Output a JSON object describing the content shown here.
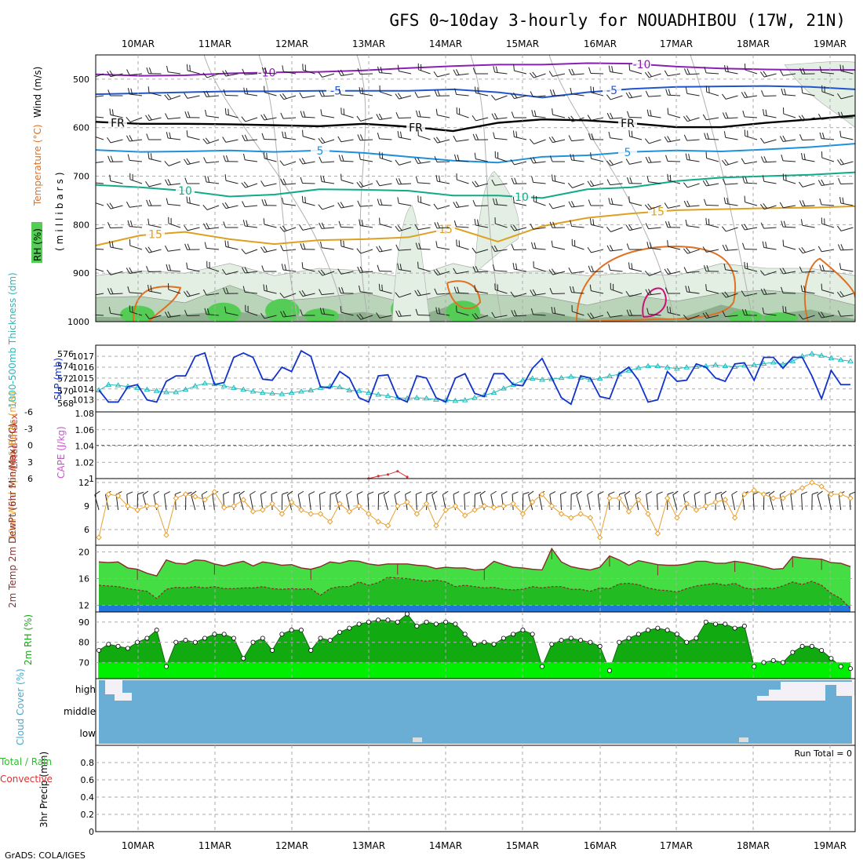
{
  "title": "GFS 0~10day 3-hourly for NOUADHIBOU (17W, 21N)",
  "credit": "GrADS: COLA/IGES",
  "run_total": "Run Total = 0",
  "dates": [
    "10MAR",
    "11MAR",
    "12MAR",
    "13MAR",
    "14MAR",
    "15MAR",
    "16MAR",
    "17MAR",
    "18MAR",
    "19MAR"
  ],
  "colors": {
    "rh_dark": "#8fb08f",
    "rh_mid": "#b9d4b9",
    "rh_light": "#e3efe3",
    "rh_green": "#55cc55",
    "temp_m10": "#8a1fb5",
    "temp_m5": "#2255cc",
    "temp_fr": "#000000",
    "temp_5": "#1e90dd",
    "temp_10": "#11aa88",
    "temp_15": "#dda020",
    "temp_20": "#e07020",
    "temp_25": "#cc1177",
    "slp": "#1133cc",
    "thickness": "#22bbbb",
    "wind10": "#e8a030",
    "temp_fill": "#44dd44",
    "dew_fill": "#22bb22",
    "low_fill": "#2277dd",
    "rh_fill_dark": "#11aa11",
    "rh_fill_light": "#00ee00",
    "cloud": "#6aaed6",
    "cloud_clear": "#f3f0f8",
    "grid": "#aaaaaa"
  },
  "chart_data": [
    {
      "type": "area",
      "panel": "pressure-time cross section",
      "ylabel": "(millibars)",
      "legend": [
        "RH (%)",
        "Temperature (°C)",
        "Wind (m/s)"
      ],
      "yticks": [
        500,
        600,
        700,
        800,
        900,
        1000
      ],
      "ylim": [
        1000,
        450
      ],
      "temperature_contours": [
        {
          "label": "-10",
          "level_mb": [
            490,
            493,
            492,
            488,
            486,
            485,
            482,
            477,
            473,
            470,
            470,
            467,
            468,
            474,
            478,
            480,
            481,
            481
          ]
        },
        {
          "label": "-5",
          "level_mb": [
            531,
            529,
            527,
            525,
            525,
            524,
            524,
            524,
            521,
            527,
            538,
            527,
            520,
            516,
            515,
            514,
            516,
            521
          ]
        },
        {
          "label": "FR",
          "level_mb": [
            588,
            592,
            592,
            593,
            595,
            597,
            592,
            598,
            607,
            590,
            583,
            585,
            591,
            599,
            599,
            590,
            583,
            575
          ]
        },
        {
          "label": "5",
          "level_mb": [
            646,
            650,
            649,
            647,
            650,
            647,
            652,
            660,
            668,
            672,
            660,
            657,
            650,
            647,
            649,
            645,
            640,
            633
          ]
        },
        {
          "label": "10",
          "level_mb": [
            718,
            723,
            730,
            742,
            738,
            727,
            728,
            730,
            740,
            740,
            745,
            727,
            723,
            710,
            703,
            700,
            697,
            692
          ]
        },
        {
          "label": "15",
          "level_mb": [
            843,
            822,
            815,
            830,
            840,
            832,
            830,
            826,
            806,
            835,
            803,
            786,
            777,
            770,
            768,
            766,
            765,
            762
          ]
        }
      ],
      "rh_low_level_top_mb": [
        905,
        895,
        900,
        880,
        905,
        890,
        895,
        910,
        880,
        900,
        895,
        905,
        900,
        905,
        880,
        890,
        890,
        905
      ]
    },
    {
      "type": "line",
      "panel": "sea level pressure and thickness",
      "ylabel_left": "1000-500mb Thickness (dm)",
      "ylabel_right": "SLP (mb)",
      "yticks_left": [
        568,
        570,
        572,
        574,
        576
      ],
      "yticks_right": [
        1013,
        1014,
        1015,
        1016,
        1017
      ],
      "ylim_left": [
        567.5,
        577
      ],
      "series": [
        {
          "name": "SLP (mb)",
          "axis": "right",
          "values": [
            1013.9,
            1012.8,
            1012.8,
            1014.2,
            1014.4,
            1013.0,
            1012.8,
            1014.7,
            1015.2,
            1015.2,
            1017.0,
            1017.3,
            1014.4,
            1014.6,
            1016.9,
            1017.3,
            1016.9,
            1014.9,
            1014.8,
            1016.0,
            1015.6,
            1017.5,
            1017.0,
            1014.2,
            1014.1,
            1015.6,
            1015.0,
            1013.2,
            1012.8,
            1015.2,
            1015.3,
            1013.2,
            1012.8,
            1015.2,
            1015.0,
            1013.2,
            1012.8,
            1015.0,
            1015.4,
            1013.6,
            1013.3,
            1015.4,
            1015.4,
            1014.4,
            1014.3,
            1015.9,
            1016.8,
            1015.0,
            1013.2,
            1012.6,
            1015.2,
            1015.0,
            1013.3,
            1013.1,
            1015.4,
            1016.0,
            1014.8,
            1012.8,
            1013.0,
            1015.6,
            1014.7,
            1014.8,
            1016.3,
            1016.0,
            1015.0,
            1014.7,
            1016.3,
            1016.4,
            1014.8,
            1016.9,
            1016.9,
            1015.9,
            1016.9,
            1016.9,
            1015.2,
            1013.1,
            1015.7,
            1014.4,
            1014.4
          ]
        },
        {
          "name": "Thickness (dm)",
          "axis": "left",
          "values": [
            570.1,
            571.0,
            570.9,
            570.7,
            570.5,
            570.2,
            570.0,
            569.8,
            569.8,
            570.2,
            570.8,
            571.2,
            571.1,
            570.8,
            570.5,
            570.2,
            569.9,
            569.7,
            569.6,
            569.5,
            569.7,
            569.9,
            570.1,
            570.5,
            570.8,
            570.6,
            570.1,
            570.0,
            569.7,
            569.4,
            569.2,
            568.9,
            568.8,
            568.9,
            568.8,
            568.6,
            568.5,
            568.4,
            568.5,
            568.9,
            569.3,
            569.7,
            570.4,
            571.0,
            571.7,
            572.0,
            571.8,
            571.9,
            572.1,
            572.3,
            572.1,
            571.8,
            572.0,
            572.4,
            572.7,
            573.3,
            573.7,
            574.0,
            574.0,
            573.8,
            573.6,
            573.8,
            573.9,
            574.0,
            574.2,
            574.0,
            573.9,
            574.1,
            574.2,
            574.4,
            574.6,
            574.3,
            574.8,
            575.6,
            576.0,
            575.7,
            575.3,
            575.0,
            574.8
          ]
        }
      ]
    },
    {
      "type": "line",
      "panel": "lifted index and CAPE",
      "ylabel_left": "Lifted Index",
      "ylabel_right": "CAPE (J/kg)",
      "yticks_left": [
        -6,
        -3,
        0,
        3,
        6
      ],
      "yticks_right": [
        1,
        1.02,
        1.04,
        1.06,
        1.08
      ],
      "series": [
        {
          "name": "CAPE (J/kg)",
          "axis": "right",
          "x_index": [
            28,
            29,
            30,
            31,
            32
          ],
          "values": [
            1.0,
            1.003,
            1.005,
            1.009,
            1.002
          ]
        }
      ]
    },
    {
      "type": "line",
      "panel": "10m wind",
      "ylabel": "10m Wind Speed & Barbs (m/s)",
      "yticks": [
        6,
        9,
        12
      ],
      "ylim": [
        4,
        12.5
      ],
      "series": [
        {
          "name": "10m Wind Speed",
          "values": [
            5.0,
            10.5,
            10.3,
            9.0,
            8.5,
            9.0,
            9.0,
            5.3,
            10.0,
            10.5,
            10.2,
            9.8,
            10.8,
            8.8,
            9.0,
            9.8,
            8.3,
            8.5,
            9.3,
            8.0,
            9.5,
            8.5,
            8.0,
            8.0,
            7.0,
            9.3,
            8.3,
            9.0,
            8.0,
            7.0,
            6.5,
            9.0,
            9.5,
            8.0,
            9.3,
            6.5,
            8.5,
            9.0,
            7.8,
            8.5,
            9.0,
            8.8,
            9.0,
            9.3,
            8.0,
            9.5,
            10.5,
            9.0,
            8.0,
            7.5,
            8.0,
            7.5,
            5.0,
            10.0,
            10.0,
            8.3,
            9.8,
            8.0,
            5.5,
            10.0,
            7.5,
            9.3,
            8.5,
            9.0,
            9.5,
            9.8,
            7.5,
            10.5,
            11.0,
            10.5,
            10.0,
            10.0,
            10.8,
            11.3,
            12.0,
            11.5,
            10.5,
            10.5,
            10.0
          ]
        }
      ]
    },
    {
      "type": "area",
      "panel": "2m temperature",
      "ylabel": "2m Temp 2m DewPt (6hr Min/Max) (°C)",
      "yticks": [
        12,
        16,
        20
      ],
      "ylim": [
        11,
        21
      ],
      "series": [
        {
          "name": "2m Temp",
          "values": [
            18.5,
            18.4,
            18.5,
            17.6,
            17.4,
            16.8,
            16.4,
            18.8,
            18.3,
            18.2,
            18.8,
            18.7,
            18.2,
            17.9,
            18.3,
            18.6,
            17.9,
            18.5,
            18.3,
            18.0,
            18.1,
            17.6,
            17.4,
            17.8,
            18.5,
            18.3,
            18.7,
            18.6,
            18.2,
            18.0,
            18.2,
            18.2,
            18.2,
            18.0,
            17.9,
            17.5,
            17.7,
            17.6,
            17.6,
            17.3,
            17.4,
            18.6,
            18.1,
            17.7,
            17.6,
            17.4,
            17.3,
            20.5,
            18.5,
            17.8,
            17.5,
            17.3,
            17.7,
            19.4,
            18.8,
            18.0,
            18.7,
            18.4,
            18.1,
            18.0,
            18.0,
            18.2,
            18.6,
            18.6,
            18.3,
            18.3,
            18.6,
            18.4,
            18.1,
            17.8,
            17.4,
            17.5,
            19.3,
            19.1,
            19.0,
            18.9,
            18.4,
            18.3,
            17.8
          ]
        },
        {
          "name": "2m DewPt",
          "values": [
            15.0,
            14.9,
            14.8,
            14.5,
            14.3,
            14.1,
            13.0,
            14.4,
            14.7,
            14.6,
            14.8,
            14.6,
            14.8,
            14.5,
            14.5,
            14.6,
            14.6,
            14.8,
            14.5,
            14.4,
            14.5,
            14.4,
            14.5,
            13.5,
            14.5,
            14.8,
            14.8,
            15.5,
            15.0,
            15.4,
            16.2,
            16.1,
            16.0,
            15.8,
            15.6,
            15.8,
            15.5,
            14.8,
            15.0,
            14.8,
            14.6,
            14.7,
            14.4,
            14.3,
            14.4,
            14.8,
            14.6,
            14.8,
            14.8,
            14.4,
            14.4,
            14.1,
            14.6,
            14.5,
            15.2,
            15.3,
            15.1,
            14.6,
            14.3,
            14.2,
            14.0,
            14.5,
            14.9,
            15.1,
            15.3,
            15.0,
            15.3,
            14.6,
            14.4,
            14.6,
            14.5,
            14.9,
            15.5,
            15.1,
            15.6,
            15.0,
            13.8,
            13.0,
            11.5
          ]
        }
      ]
    },
    {
      "type": "area",
      "panel": "2m relative humidity",
      "ylabel": "2m RH (%)",
      "yticks": [
        70,
        80,
        90
      ],
      "ylim": [
        62,
        95
      ],
      "series": [
        {
          "name": "2m RH",
          "values": [
            76,
            79,
            78,
            77,
            80,
            82,
            86,
            68,
            80,
            81,
            80,
            82,
            84,
            84,
            82,
            72,
            80,
            82,
            76,
            84,
            86,
            86,
            76,
            82,
            81,
            85,
            87,
            89,
            90,
            91,
            91,
            90,
            94,
            88,
            90,
            89,
            90,
            89,
            84,
            79,
            80,
            79,
            82,
            84,
            86,
            84,
            68,
            79,
            81,
            82,
            81,
            80,
            78,
            66,
            80,
            82,
            84,
            86,
            87,
            86,
            84,
            80,
            82,
            90,
            89,
            89,
            87,
            88,
            68,
            70,
            71,
            70,
            75,
            78,
            78,
            76,
            72,
            68,
            67
          ]
        }
      ]
    },
    {
      "type": "area",
      "panel": "cloud cover",
      "ylabel": "Cloud Cover (%)",
      "levels": [
        "high",
        "middle",
        "low"
      ],
      "note": "high cloud clear near start and end of period"
    },
    {
      "type": "bar",
      "panel": "3hr precipitation",
      "ylabel": "3hr Precip (mm)",
      "legend": [
        "Total / Rain",
        "Convective"
      ],
      "yticks": [
        "0",
        "0.2",
        "0.4",
        "0.6",
        "0.8"
      ],
      "ylim": [
        0,
        1
      ],
      "values": []
    }
  ]
}
